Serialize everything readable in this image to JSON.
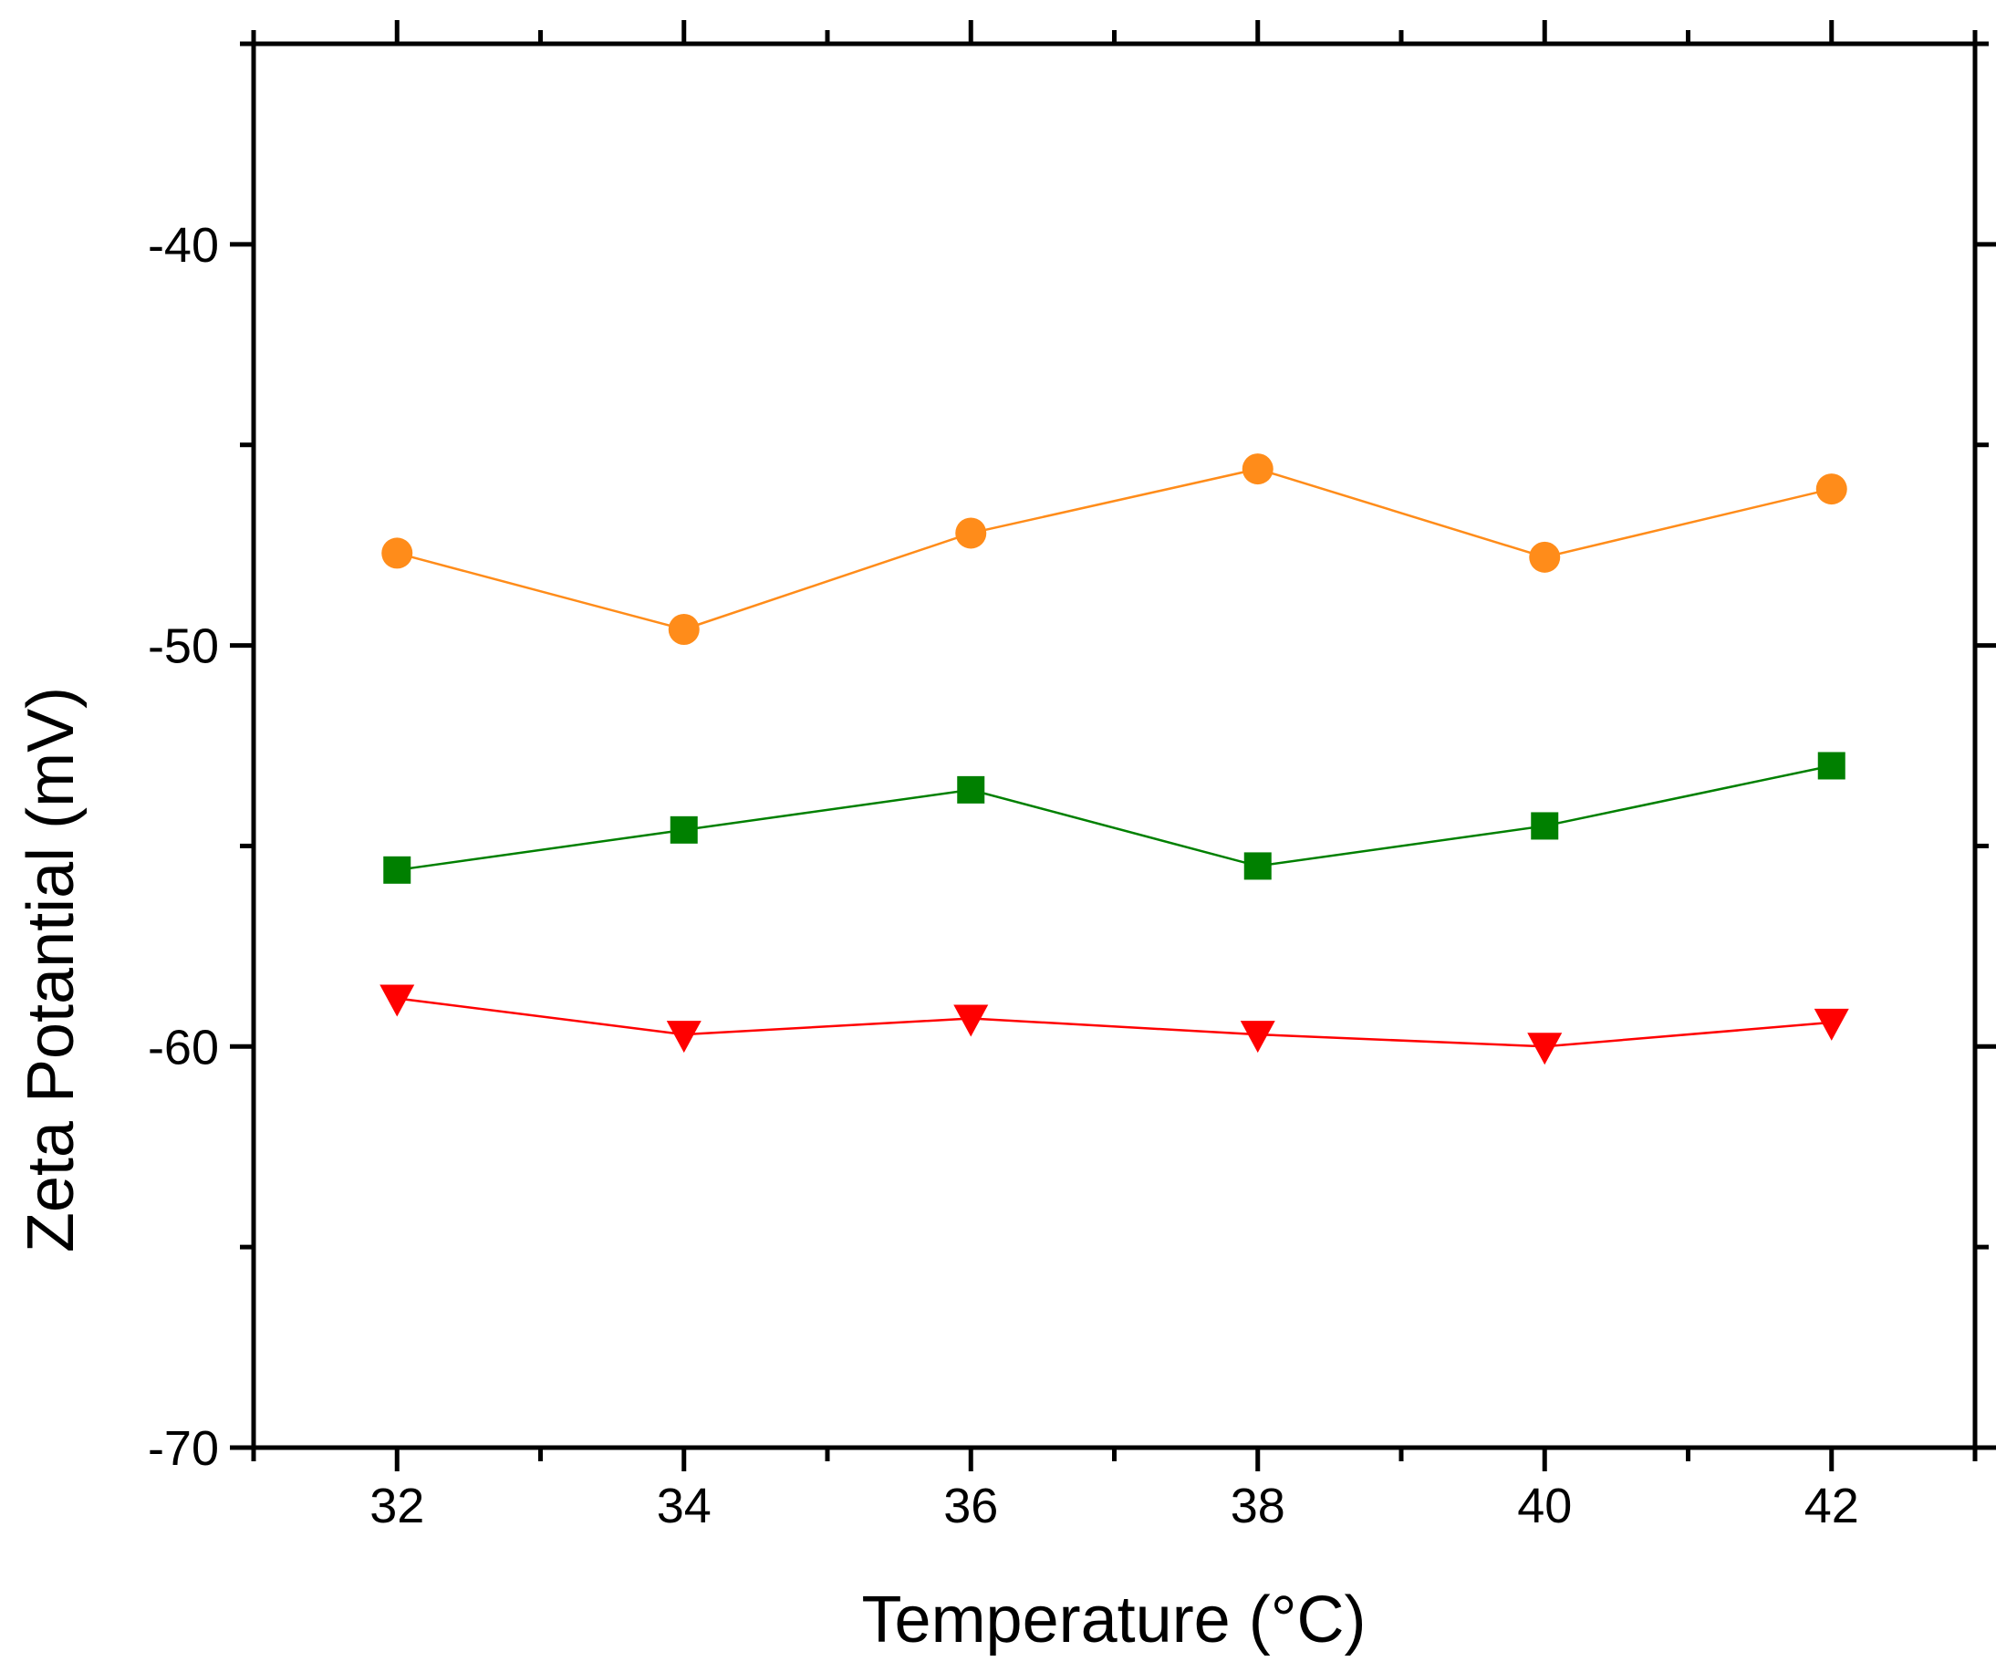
{
  "chart_data": {
    "type": "line",
    "title": "",
    "xlabel": "Temperature (°C)",
    "ylabel": "Zeta Potantial (mV)",
    "xlim": [
      31,
      43
    ],
    "ylim": [
      -70,
      -35
    ],
    "xticks": [
      32,
      34,
      36,
      38,
      40,
      42
    ],
    "yticks": [
      -40,
      -50,
      -60,
      -70
    ],
    "x": [
      32,
      34,
      36,
      38,
      40,
      42
    ],
    "grid": false,
    "legend": "none",
    "series": [
      {
        "marker": "circle",
        "color": "#ff8c1a",
        "values": [
          -47.7,
          -49.6,
          -47.2,
          -45.6,
          -47.8,
          -46.1
        ]
      },
      {
        "marker": "square",
        "color": "#008000",
        "values": [
          -55.6,
          -54.6,
          -53.6,
          -55.5,
          -54.5,
          -53.0
        ]
      },
      {
        "marker": "triangle-down",
        "color": "#ff0000",
        "values": [
          -58.8,
          -59.7,
          -59.3,
          -59.7,
          -60.0,
          -59.4
        ]
      }
    ]
  }
}
